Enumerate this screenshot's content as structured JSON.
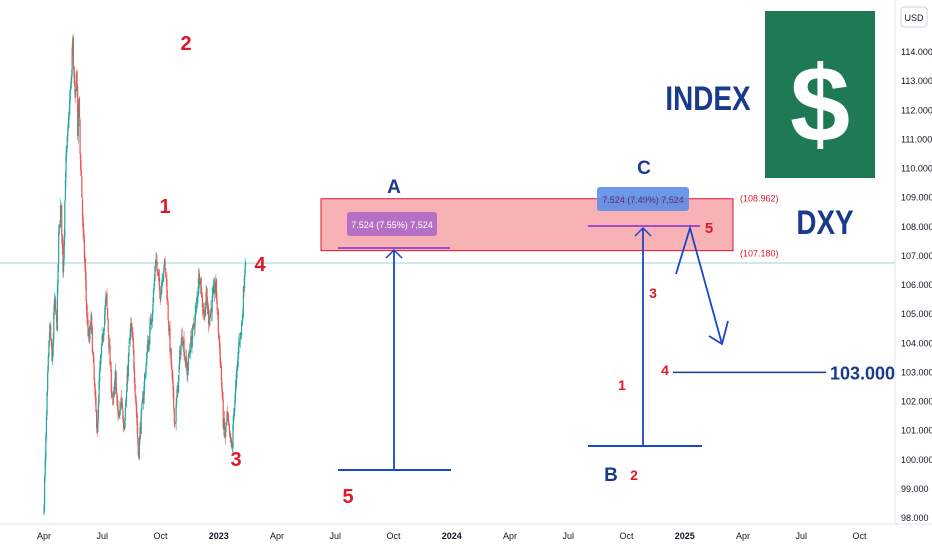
{
  "header": {
    "currency": "USD"
  },
  "brand": {
    "index_label": "INDEX",
    "symbol": "DXY",
    "logo_glyph": "$",
    "logo_bg": "#1e7a55"
  },
  "colors": {
    "up": "#26a69a",
    "down": "#ef5350",
    "annotation": "#1a47c9",
    "text_dark": "#1a3a8a",
    "wave": "#e0162b",
    "zone_fill": "#f7a3a8",
    "zone_border": "#e0162b",
    "measure": "#9c4fc9"
  },
  "chart_data": {
    "type": "candlestick",
    "y_ticks": [
      "114.000",
      "113.000",
      "112.000",
      "111.000",
      "110.000",
      "109.000",
      "108.000",
      "107.000",
      "106.000",
      "105.000",
      "104.000",
      "103.000",
      "102.000",
      "101.000",
      "100.000",
      "99.000",
      "98.000"
    ],
    "x_ticks": [
      "Apr",
      "Jul",
      "Oct",
      "2023",
      "Apr",
      "Jul",
      "Oct",
      "2024",
      "Apr",
      "Jul",
      "Oct",
      "2025",
      "Apr",
      "Jul",
      "Oct"
    ],
    "ylim": [
      97.9,
      115.2
    ],
    "current_price_label": "103.000",
    "target_level": {
      "value": 103.0,
      "label": "103.000"
    },
    "resistance_zone": {
      "top": 108.962,
      "bottom": 107.18,
      "top_label": "(108.962)",
      "bottom_label": "(107.180)"
    },
    "measures": [
      {
        "label": "7.524 (7.55%) 7,524"
      },
      {
        "label": "7.524 (7.49%) 7,524"
      }
    ],
    "wave_labels": {
      "big": [
        "2",
        "1",
        "4",
        "3",
        "5",
        "5"
      ],
      "small": [
        "1",
        "2",
        "3",
        "4"
      ]
    },
    "abc_labels": [
      "A",
      "B",
      "C"
    ],
    "price_path": [
      {
        "t": 0,
        "v": 98.1
      },
      {
        "t": 0.03,
        "v": 99.8
      },
      {
        "t": 0.07,
        "v": 102.6
      },
      {
        "t": 0.11,
        "v": 104.7
      },
      {
        "t": 0.15,
        "v": 103.2
      },
      {
        "t": 0.19,
        "v": 105.5
      },
      {
        "t": 0.23,
        "v": 104.6
      },
      {
        "t": 0.26,
        "v": 107.5
      },
      {
        "t": 0.3,
        "v": 108.8
      },
      {
        "t": 0.34,
        "v": 106.4
      },
      {
        "t": 0.38,
        "v": 110.0
      },
      {
        "t": 0.42,
        "v": 111.2
      },
      {
        "t": 0.45,
        "v": 112.3
      },
      {
        "t": 0.48,
        "v": 113.0
      },
      {
        "t": 0.5,
        "v": 114.6
      },
      {
        "t": 0.52,
        "v": 113.3
      },
      {
        "t": 0.55,
        "v": 112.0
      },
      {
        "t": 0.57,
        "v": 113.8
      },
      {
        "t": 0.59,
        "v": 111.0
      },
      {
        "t": 0.61,
        "v": 112.5
      },
      {
        "t": 0.63,
        "v": 110.5
      },
      {
        "t": 0.65,
        "v": 109.8
      },
      {
        "t": 0.68,
        "v": 107.8
      },
      {
        "t": 0.71,
        "v": 106.8
      },
      {
        "t": 0.74,
        "v": 105.2
      },
      {
        "t": 0.78,
        "v": 104.0
      },
      {
        "t": 0.82,
        "v": 104.8
      },
      {
        "t": 0.86,
        "v": 103.1
      },
      {
        "t": 0.9,
        "v": 101.6
      },
      {
        "t": 0.93,
        "v": 101.0
      },
      {
        "t": 0.96,
        "v": 102.8
      },
      {
        "t": 1.0,
        "v": 103.8
      },
      {
        "t": 1.04,
        "v": 104.8
      },
      {
        "t": 1.08,
        "v": 105.6
      },
      {
        "t": 1.12,
        "v": 104.2
      },
      {
        "t": 1.16,
        "v": 102.7
      },
      {
        "t": 1.2,
        "v": 101.9
      },
      {
        "t": 1.24,
        "v": 102.9
      },
      {
        "t": 1.27,
        "v": 101.7
      },
      {
        "t": 1.3,
        "v": 101.4
      },
      {
        "t": 1.34,
        "v": 102.2
      },
      {
        "t": 1.38,
        "v": 101.2
      },
      {
        "t": 1.42,
        "v": 102.0
      },
      {
        "t": 1.46,
        "v": 103.5
      },
      {
        "t": 1.5,
        "v": 104.6
      },
      {
        "t": 1.54,
        "v": 103.8
      },
      {
        "t": 1.58,
        "v": 102.3
      },
      {
        "t": 1.61,
        "v": 101.1
      },
      {
        "t": 1.63,
        "v": 100.1
      },
      {
        "t": 1.66,
        "v": 101.0
      },
      {
        "t": 1.7,
        "v": 101.9
      },
      {
        "t": 1.74,
        "v": 102.8
      },
      {
        "t": 1.78,
        "v": 103.7
      },
      {
        "t": 1.82,
        "v": 104.3
      },
      {
        "t": 1.86,
        "v": 105.0
      },
      {
        "t": 1.9,
        "v": 106.0
      },
      {
        "t": 1.93,
        "v": 107.0
      },
      {
        "t": 1.96,
        "v": 106.4
      },
      {
        "t": 2.0,
        "v": 105.7
      },
      {
        "t": 2.03,
        "v": 106.1
      },
      {
        "t": 2.07,
        "v": 106.8
      },
      {
        "t": 2.11,
        "v": 106.2
      },
      {
        "t": 2.14,
        "v": 105.0
      },
      {
        "t": 2.17,
        "v": 104.0
      },
      {
        "t": 2.2,
        "v": 103.1
      },
      {
        "t": 2.23,
        "v": 102.0
      },
      {
        "t": 2.26,
        "v": 101.2
      },
      {
        "t": 2.29,
        "v": 102.1
      },
      {
        "t": 2.32,
        "v": 102.8
      },
      {
        "t": 2.35,
        "v": 103.8
      },
      {
        "t": 2.39,
        "v": 104.3
      },
      {
        "t": 2.43,
        "v": 103.5
      },
      {
        "t": 2.47,
        "v": 103.0
      },
      {
        "t": 2.51,
        "v": 103.8
      },
      {
        "t": 2.55,
        "v": 104.2
      },
      {
        "t": 2.59,
        "v": 104.7
      },
      {
        "t": 2.63,
        "v": 105.3
      },
      {
        "t": 2.66,
        "v": 106.2
      },
      {
        "t": 2.69,
        "v": 106.4
      },
      {
        "t": 2.72,
        "v": 105.5
      },
      {
        "t": 2.76,
        "v": 105.0
      },
      {
        "t": 2.8,
        "v": 105.6
      },
      {
        "t": 2.84,
        "v": 104.8
      },
      {
        "t": 2.88,
        "v": 105.2
      },
      {
        "t": 2.92,
        "v": 105.7
      },
      {
        "t": 2.96,
        "v": 106.0
      },
      {
        "t": 3.0,
        "v": 104.6
      },
      {
        "t": 3.03,
        "v": 103.7
      },
      {
        "t": 3.06,
        "v": 102.6
      },
      {
        "t": 3.09,
        "v": 101.2
      },
      {
        "t": 3.12,
        "v": 100.8
      },
      {
        "t": 3.15,
        "v": 101.5
      },
      {
        "t": 3.18,
        "v": 101.0
      },
      {
        "t": 3.21,
        "v": 100.6
      },
      {
        "t": 3.24,
        "v": 100.3
      },
      {
        "t": 3.27,
        "v": 101.8
      },
      {
        "t": 3.3,
        "v": 102.4
      },
      {
        "t": 3.33,
        "v": 103.2
      },
      {
        "t": 3.36,
        "v": 104.2
      },
      {
        "t": 3.39,
        "v": 104.3
      },
      {
        "t": 3.42,
        "v": 105.1
      },
      {
        "t": 3.45,
        "v": 106.4
      },
      {
        "t": 3.47,
        "v": 107.0
      }
    ]
  }
}
